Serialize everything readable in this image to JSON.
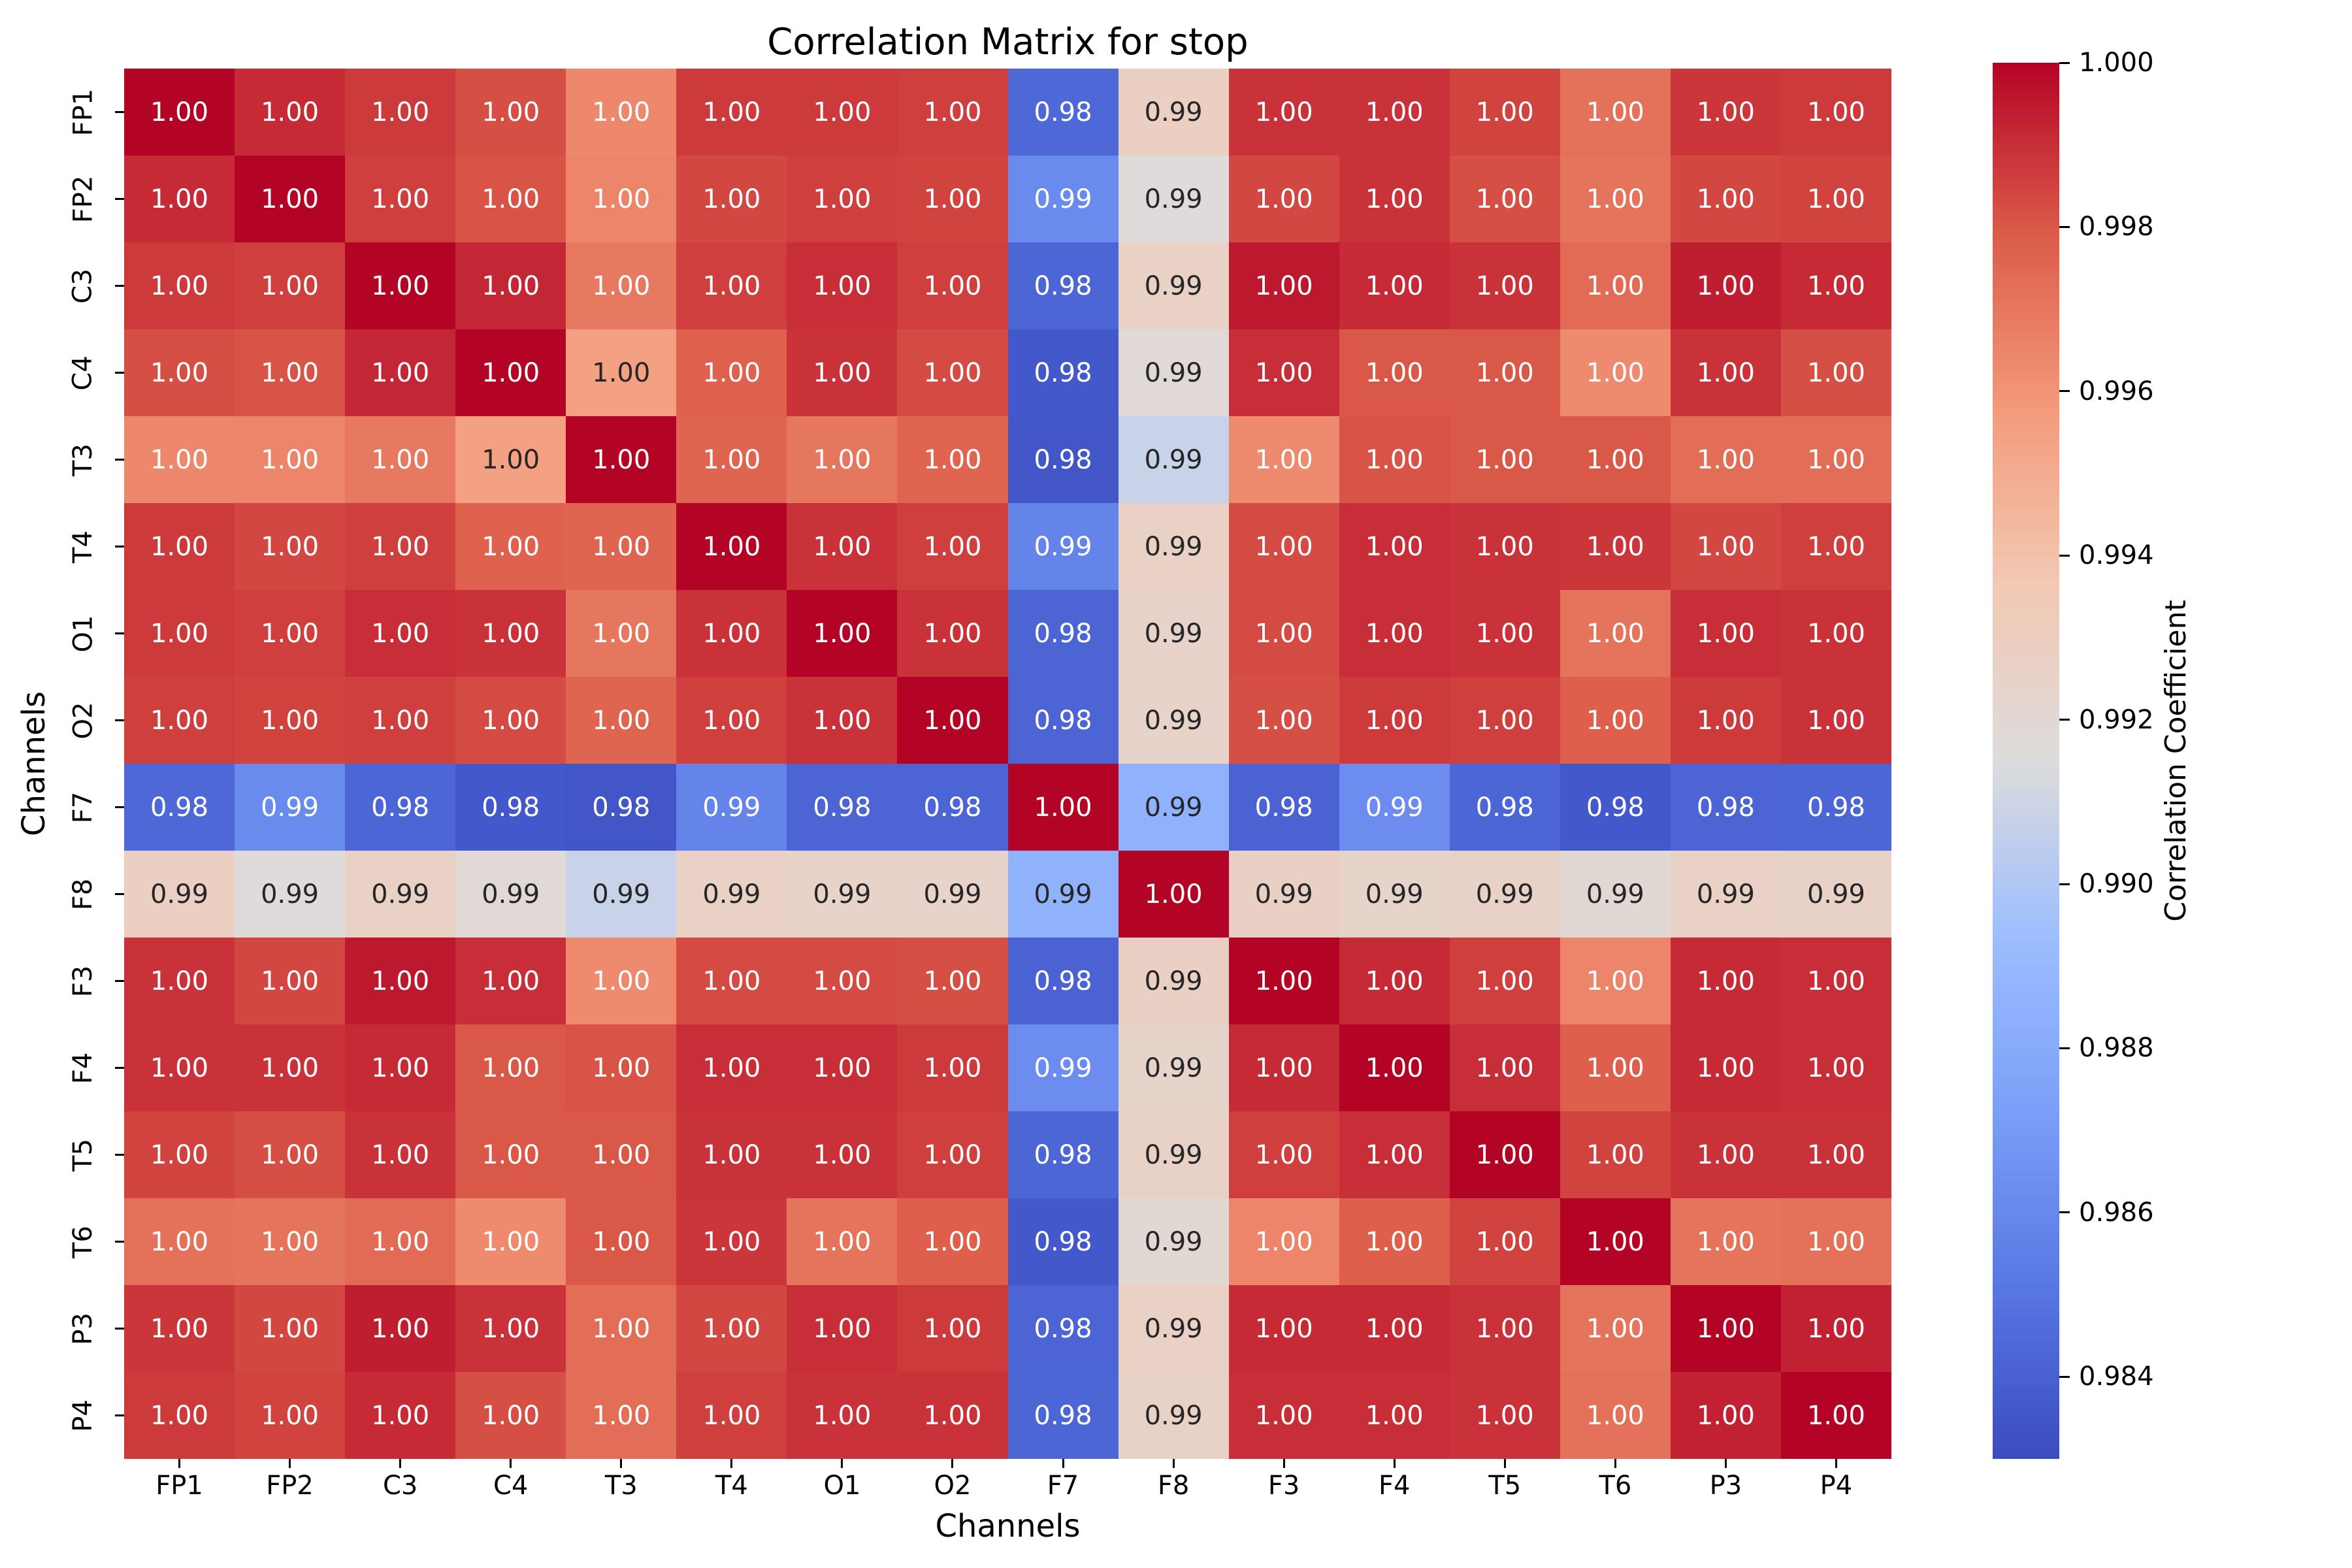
{
  "title": "Correlation Matrix for stop",
  "axes": {
    "xlabel": "Channels",
    "ylabel": "Channels"
  },
  "colorbar": {
    "label": "Correlation Coefficient"
  },
  "text_colors": {
    "dark": "#262626",
    "light": "#ffffff"
  },
  "chart_data": {
    "type": "heatmap",
    "title": "Correlation Matrix for stop",
    "xlabel": "Channels",
    "ylabel": "Channels",
    "categories": [
      "FP1",
      "FP2",
      "C3",
      "C4",
      "T3",
      "T4",
      "O1",
      "O2",
      "F7",
      "F8",
      "F3",
      "F4",
      "T5",
      "T6",
      "P3",
      "P4"
    ],
    "matrix": [
      [
        1.0,
        0.9991,
        0.9987,
        0.9982,
        0.9964,
        0.9987,
        0.9987,
        0.9986,
        0.9844,
        0.9929,
        0.9989,
        0.9989,
        0.9985,
        0.9972,
        0.9988,
        0.9987
      ],
      [
        0.9991,
        1.0,
        0.9986,
        0.9981,
        0.9965,
        0.9984,
        0.9986,
        0.9985,
        0.9862,
        0.9916,
        0.9984,
        0.9989,
        0.9982,
        0.9971,
        0.9984,
        0.9985
      ],
      [
        0.9987,
        0.9986,
        1.0,
        0.9992,
        0.9969,
        0.9986,
        0.999,
        0.9986,
        0.9843,
        0.9927,
        0.9995,
        0.9991,
        0.9989,
        0.9974,
        0.9994,
        0.9991
      ],
      [
        0.9982,
        0.9981,
        0.9992,
        1.0,
        0.9955,
        0.9977,
        0.9989,
        0.9983,
        0.9836,
        0.9918,
        0.999,
        0.998,
        0.998,
        0.9963,
        0.9989,
        0.9982
      ],
      [
        0.9964,
        0.9965,
        0.9969,
        0.9955,
        1.0,
        0.9976,
        0.997,
        0.9976,
        0.9835,
        0.9908,
        0.9963,
        0.9981,
        0.998,
        0.998,
        0.9973,
        0.9973
      ],
      [
        0.9987,
        0.9984,
        0.9986,
        0.9977,
        0.9976,
        1.0,
        0.9989,
        0.9986,
        0.9858,
        0.9927,
        0.9983,
        0.999,
        0.9989,
        0.9988,
        0.9984,
        0.9986
      ],
      [
        0.9987,
        0.9986,
        0.999,
        0.9989,
        0.997,
        0.9989,
        1.0,
        0.9989,
        0.9842,
        0.9925,
        0.9983,
        0.999,
        0.9989,
        0.9971,
        0.999,
        0.9989
      ],
      [
        0.9986,
        0.9985,
        0.9986,
        0.9983,
        0.9976,
        0.9986,
        0.9989,
        1.0,
        0.9842,
        0.9925,
        0.9982,
        0.9987,
        0.9986,
        0.9978,
        0.9987,
        0.9989
      ],
      [
        0.9844,
        0.9862,
        0.9843,
        0.9836,
        0.9835,
        0.9858,
        0.9842,
        0.9842,
        1.0,
        0.9885,
        0.9841,
        0.9863,
        0.9843,
        0.9836,
        0.9842,
        0.9843
      ],
      [
        0.9929,
        0.9916,
        0.9927,
        0.9918,
        0.9908,
        0.9927,
        0.9925,
        0.9925,
        0.9885,
        1.0,
        0.9928,
        0.9924,
        0.9926,
        0.992,
        0.9927,
        0.9926
      ],
      [
        0.9989,
        0.9984,
        0.9995,
        0.999,
        0.9963,
        0.9983,
        0.9983,
        0.9982,
        0.9841,
        0.9928,
        1.0,
        0.9991,
        0.9986,
        0.9965,
        0.9991,
        0.999
      ],
      [
        0.9989,
        0.9989,
        0.9991,
        0.998,
        0.9981,
        0.999,
        0.999,
        0.9987,
        0.9863,
        0.9924,
        0.9991,
        1.0,
        0.999,
        0.9978,
        0.9991,
        0.999
      ],
      [
        0.9985,
        0.9982,
        0.9989,
        0.998,
        0.998,
        0.9989,
        0.9989,
        0.9986,
        0.9843,
        0.9926,
        0.9986,
        0.999,
        1.0,
        0.9985,
        0.9989,
        0.9989
      ],
      [
        0.9972,
        0.9971,
        0.9974,
        0.9963,
        0.998,
        0.9988,
        0.9971,
        0.9978,
        0.9836,
        0.992,
        0.9965,
        0.9978,
        0.9985,
        1.0,
        0.9971,
        0.9972
      ],
      [
        0.9988,
        0.9984,
        0.9994,
        0.9989,
        0.9973,
        0.9984,
        0.999,
        0.9987,
        0.9842,
        0.9927,
        0.9991,
        0.9991,
        0.9989,
        0.9971,
        1.0,
        0.9993
      ],
      [
        0.9987,
        0.9985,
        0.9991,
        0.9982,
        0.9973,
        0.9986,
        0.9989,
        0.9989,
        0.9843,
        0.9926,
        0.999,
        0.999,
        0.9989,
        0.9972,
        0.9993,
        1.0
      ]
    ],
    "value_format": ".2f",
    "vmin": 0.983,
    "vmax": 1.0,
    "grid": false,
    "legend_position": "right-colorbar",
    "colorbar": {
      "label": "Correlation Coefficient",
      "ticks": [
        "1.000",
        "0.998",
        "0.996",
        "0.994",
        "0.992",
        "0.990",
        "0.988",
        "0.986",
        "0.984"
      ]
    },
    "colormap": {
      "name": "coolwarm",
      "anchors": [
        [
          0.0,
          "#3B4CC0"
        ],
        [
          0.125,
          "#5977E3"
        ],
        [
          0.25,
          "#7B9FF8"
        ],
        [
          0.375,
          "#9EBEFF"
        ],
        [
          0.5,
          "#DDDCDC"
        ],
        [
          0.625,
          "#F2C9B4"
        ],
        [
          0.75,
          "#F49B7C"
        ],
        [
          0.875,
          "#DC5D4A"
        ],
        [
          1.0,
          "#B40426"
        ]
      ]
    }
  }
}
